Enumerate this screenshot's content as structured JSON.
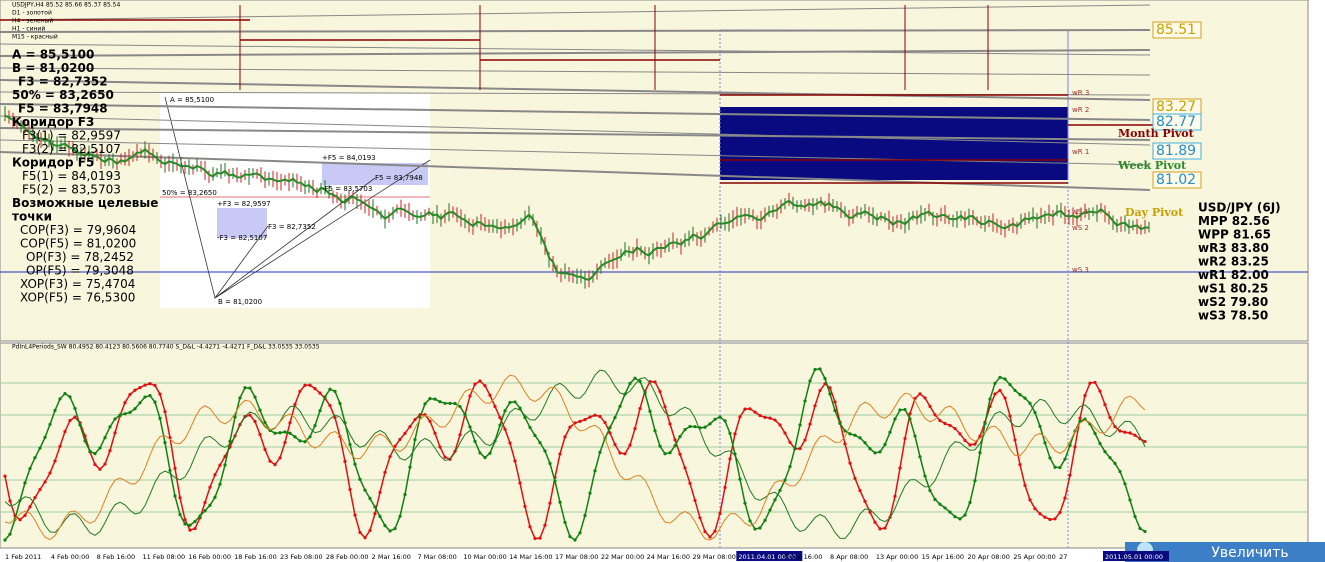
{
  "header": {
    "symbol": "USDJPY,H4 85.52 85.66 85.37 85.54",
    "legend": [
      "D1 - золотой",
      "H4 - зеленый",
      "H1 - синий",
      "M15 - красный"
    ]
  },
  "fibo_panel": [
    "A = 85,5100",
    "B = 81,0200",
    "F3 = 82,7352",
    "50% = 83,2650",
    "F5 = 83,7948",
    "Коридор F3",
    "F3(1) = 82,9597",
    "F3(2) = 82,5107",
    "Коридор F5",
    "F5(1) = 84,0193",
    "F5(2) = 83,5703",
    "Возможные целевые",
    "точки",
    "COP(F3) = 79,9604",
    "COP(F5) = 81,0200",
    "OP(F3) = 78,2452",
    "OP(F5) = 79,3048",
    "XOP(F3) = 75,4704",
    "XOP(F5) = 76,5300"
  ],
  "diagram": [
    "A = 85,5100",
    "50% = 83,2650",
    "+F5 = 84,0193",
    "F5 = 83,7948",
    "-F5 = 83,5703",
    "+F3 = 82,9597",
    "F3 = 82,7352",
    "-F3 = 82,5107",
    "B = 81,0200"
  ],
  "price_tags": [
    "85.51",
    "83.27",
    "82.77",
    "81.89",
    "81.02"
  ],
  "pivot_labels": [
    "wR 3",
    "wR 2",
    "wR 1",
    "wS 1",
    "wS 2",
    "wS 3",
    "Month Pivot",
    "Week Pivot",
    "Day Pivot"
  ],
  "info": [
    "USD/JPY (6J)",
    "MPP 82.56",
    "WPP 81.65",
    "wR3 83.80",
    "wR2 83.25",
    "wR1 82.00",
    "wS1 80.25",
    "wS2 79.80",
    "wS3 78.50"
  ],
  "indicator_header": "PdInL4Periods_SW 80.4952 80.4123 80.5606 80.7740  S_D&L -4.4271 -4.4271  F_D&L 33.0535 33.0535",
  "time_axis": [
    "1 Feb 2011",
    "4 Feb 00:00",
    "8 Feb 16:00",
    "11 Feb 08:00",
    "16 Feb 00:00",
    "18 Feb 16:00",
    "23 Feb 08:00",
    "28 Feb 00:00",
    "2 Mar 16:00",
    "7 Mar 08:00",
    "10 Mar 00:00",
    "14 Mar 16:00",
    "17 Mar 08:00",
    "22 Mar 00:00",
    "24 Mar 16:00",
    "29 Mar 08:00",
    "2011.04.01 00:00",
    "5 Apr 16:00",
    "8 Apr 08:00",
    "13 Apr 00:00",
    "15 Apr 16:00",
    "20 Apr 08:00",
    "25 Apr 00:00",
    "27",
    "2011.05.01 00:00"
  ],
  "button": "Увеличить"
}
